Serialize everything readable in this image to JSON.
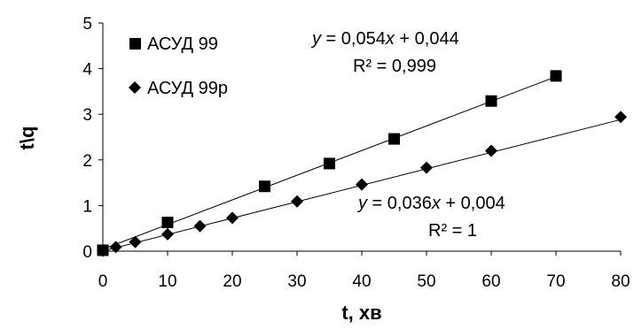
{
  "chart_data": {
    "type": "scatter",
    "title": "",
    "xlabel": "t, хв",
    "ylabel": "t\\q",
    "xlim": [
      0,
      80
    ],
    "ylim": [
      0,
      5
    ],
    "xticks": [
      "0",
      "10",
      "20",
      "30",
      "40",
      "50",
      "60",
      "70",
      "80"
    ],
    "yticks": [
      "0",
      "1",
      "2",
      "3",
      "4",
      "5"
    ],
    "grid": false,
    "legend_position": "top-left",
    "series": [
      {
        "name": "АСУД 99",
        "marker": "square",
        "color": "#000000",
        "x": [
          0,
          10,
          25,
          35,
          45,
          60,
          70
        ],
        "y": [
          0.02,
          0.63,
          1.42,
          1.92,
          2.46,
          3.29,
          3.84
        ],
        "trendline": {
          "slope": 0.054,
          "intercept": 0.044
        },
        "equation": {
          "y": "y",
          "rest": " = 0,054",
          "x": "x",
          "tail": " + 0,044"
        },
        "r2": "R² = 0,999"
      },
      {
        "name": "АСУД 99р",
        "marker": "diamond",
        "color": "#000000",
        "x": [
          0,
          2,
          5,
          10,
          15,
          20,
          30,
          40,
          50,
          60,
          80
        ],
        "y": [
          0.01,
          0.09,
          0.2,
          0.37,
          0.55,
          0.73,
          1.09,
          1.46,
          1.83,
          2.2,
          2.94
        ],
        "trendline": {
          "slope": 0.036,
          "intercept": 0.004
        },
        "equation": {
          "y": "y",
          "rest": " = 0,036",
          "x": "x",
          "tail": " + 0,004"
        },
        "r2": "R² = 1"
      }
    ]
  }
}
